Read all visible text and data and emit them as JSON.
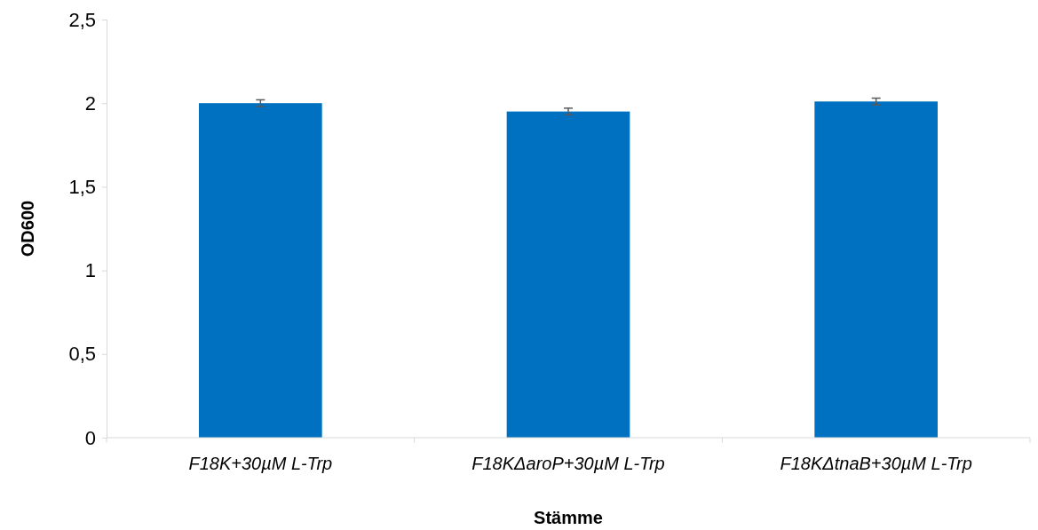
{
  "chart_data": {
    "type": "bar",
    "xlabel": "Stämme",
    "ylabel": "OD600",
    "categories": [
      "F18K+30µM L-Trp",
      "F18KΔaroP+30µM L-Trp",
      "F18KΔtnaB+30µM L-Trp"
    ],
    "values": [
      2.0,
      1.95,
      2.01
    ],
    "errors": [
      0.02,
      0.02,
      0.02
    ],
    "color": "#0070c0",
    "ylim": [
      0,
      2.5
    ],
    "yticks": [
      {
        "value": 0,
        "label": "0"
      },
      {
        "value": 0.5,
        "label": "0,5"
      },
      {
        "value": 1,
        "label": "1"
      },
      {
        "value": 1.5,
        "label": "1,5"
      },
      {
        "value": 2,
        "label": "2"
      },
      {
        "value": 2.5,
        "label": "2,5"
      }
    ]
  }
}
